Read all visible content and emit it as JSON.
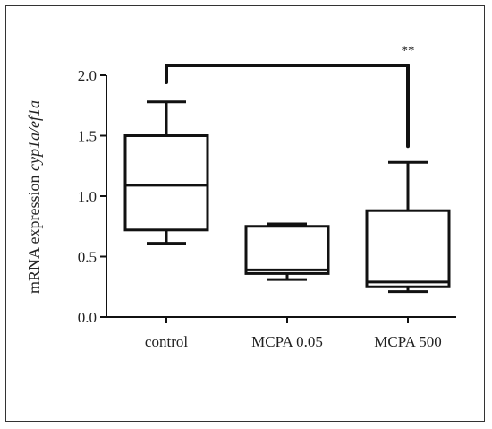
{
  "chart_data": {
    "type": "box",
    "ylabel_prefix": "mRNA expression ",
    "ylabel_italic": "cyp1a/ef1a",
    "ylim": [
      0,
      2.0
    ],
    "yticks": [
      "0.0",
      "0.5",
      "1.0",
      "1.5",
      "2.0"
    ],
    "ytick_values": [
      0,
      0.5,
      1.0,
      1.5,
      2.0
    ],
    "categories": [
      "control",
      "MCPA 0.05",
      "MCPA 500"
    ],
    "boxes": [
      {
        "name": "control",
        "min": 0.61,
        "q1": 0.72,
        "median": 1.09,
        "q3": 1.5,
        "max": 1.78
      },
      {
        "name": "MCPA 0.05",
        "min": 0.31,
        "q1": 0.36,
        "median": 0.39,
        "q3": 0.75,
        "max": 0.77
      },
      {
        "name": "MCPA 500",
        "min": 0.21,
        "q1": 0.25,
        "median": 0.29,
        "q3": 0.88,
        "max": 1.28
      }
    ],
    "significance": {
      "from": "control",
      "to": "MCPA 500",
      "label": "**",
      "level": 2.0
    },
    "grid": false
  },
  "colors": {
    "stroke": "#111111",
    "text": "#222222"
  }
}
